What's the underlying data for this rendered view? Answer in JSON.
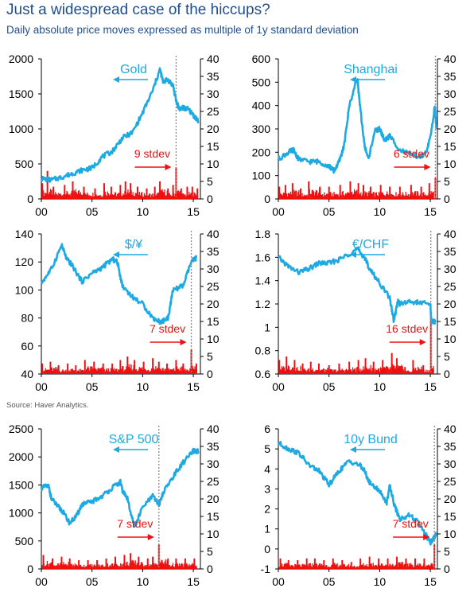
{
  "title": "Just a widespread case of the hiccups?",
  "subtitle": "Daily absolute price moves expressed as multiple of 1y standard deviation",
  "source": "Source: Haver Analytics.",
  "colors": {
    "price": "#1da9e1",
    "stdev": "#ee1111",
    "title": "#1f4e8c",
    "marker": "#888888"
  },
  "chart_data": [
    {
      "type": "line",
      "label": "Gold",
      "stdev_label": "9 stdev",
      "x_ticks": [
        "00",
        "05",
        "10",
        "15"
      ],
      "xlim": [
        2000,
        2015.7
      ],
      "x_tick_values": [
        2000,
        2005,
        2010,
        2015
      ],
      "left_ticks": [
        "0",
        "500",
        "1000",
        "1500",
        "2000"
      ],
      "left_ylim": [
        0,
        2000
      ],
      "right_ticks": [
        "0",
        "5",
        "10",
        "15",
        "20",
        "25",
        "30",
        "35",
        "40"
      ],
      "right_ylim": [
        0,
        40
      ],
      "event_year": 2013.3,
      "series": [
        {
          "name": "Gold",
          "axis": "left",
          "x": [
            2000,
            2001,
            2002,
            2003,
            2004,
            2005,
            2006,
            2007,
            2008,
            2009,
            2010,
            2011,
            2011.7,
            2012,
            2012.5,
            2013,
            2013.3,
            2013.6,
            2014,
            2014.5,
            2015,
            2015.5
          ],
          "values": [
            290,
            270,
            310,
            360,
            410,
            440,
            600,
            680,
            870,
            950,
            1230,
            1550,
            1850,
            1680,
            1700,
            1620,
            1400,
            1290,
            1300,
            1280,
            1200,
            1110
          ]
        },
        {
          "name": "stdev moves",
          "axis": "right",
          "x": [
            2000.1,
            2000.6,
            2001.2,
            2002.3,
            2003.1,
            2004.2,
            2005.3,
            2006.2,
            2006.9,
            2007.8,
            2008.3,
            2008.8,
            2009.5,
            2010.4,
            2011.2,
            2011.7,
            2012.5,
            2013.0,
            2013.3,
            2013.8,
            2014.4,
            2014.9,
            2015.4
          ],
          "values": [
            4.5,
            8,
            3.5,
            4,
            5,
            3.5,
            3,
            4.5,
            3.5,
            4,
            5,
            4.5,
            3.5,
            3,
            3.5,
            5,
            3,
            4,
            9,
            3,
            3.5,
            3.5,
            3
          ]
        }
      ]
    },
    {
      "type": "line",
      "label": "Shanghai",
      "stdev_label": "6 stdev",
      "x_ticks": [
        "00",
        "05",
        "10",
        "15"
      ],
      "xlim": [
        2000,
        2015.7
      ],
      "x_tick_values": [
        2000,
        2005,
        2010,
        2015
      ],
      "left_ticks": [
        "0",
        "100",
        "200",
        "300",
        "400",
        "500",
        "600"
      ],
      "left_ylim": [
        0,
        600
      ],
      "right_ticks": [
        "0",
        "5",
        "10",
        "15",
        "20",
        "25",
        "30",
        "35",
        "40"
      ],
      "right_ylim": [
        0,
        40
      ],
      "event_year": 2015.5,
      "series": [
        {
          "name": "Shanghai",
          "axis": "left",
          "x": [
            2000,
            2001,
            2001.5,
            2002,
            2003,
            2004,
            2005,
            2005.5,
            2006,
            2006.5,
            2007,
            2007.8,
            2008,
            2008.5,
            2008.9,
            2009.5,
            2010,
            2010.5,
            2011,
            2012,
            2013,
            2014,
            2014.5,
            2015,
            2015.45,
            2015.6
          ],
          "values": [
            170,
            200,
            210,
            170,
            160,
            160,
            140,
            120,
            160,
            230,
            400,
            520,
            420,
            230,
            170,
            290,
            300,
            250,
            270,
            210,
            190,
            180,
            190,
            260,
            400,
            300
          ]
        },
        {
          "name": "stdev moves",
          "axis": "right",
          "x": [
            2000.1,
            2000.7,
            2001.4,
            2002.2,
            2003.0,
            2004.1,
            2005.0,
            2006.1,
            2007.1,
            2007.9,
            2008.4,
            2009.1,
            2010.1,
            2011.0,
            2012.0,
            2013.1,
            2014.1,
            2014.9,
            2015.5
          ],
          "values": [
            3.5,
            4,
            4.5,
            3,
            5,
            3.5,
            3.5,
            4,
            5,
            4.5,
            4,
            3.5,
            4,
            3.5,
            3.5,
            4,
            3.5,
            4.5,
            6
          ]
        }
      ]
    },
    {
      "type": "line",
      "label": "$/¥",
      "stdev_label": "7 stdev",
      "x_ticks": [
        "00",
        "05",
        "10",
        "15"
      ],
      "xlim": [
        2000,
        2015.7
      ],
      "x_tick_values": [
        2000,
        2005,
        2010,
        2015
      ],
      "left_ticks": [
        "40",
        "60",
        "80",
        "100",
        "120",
        "140"
      ],
      "left_ylim": [
        40,
        140
      ],
      "right_ticks": [
        "0",
        "5",
        "10",
        "15",
        "20",
        "25",
        "30",
        "35",
        "40"
      ],
      "right_ylim": [
        0,
        40
      ],
      "event_year": 2014.8,
      "series": [
        {
          "name": "$/¥",
          "axis": "left",
          "x": [
            2000,
            2001,
            2002,
            2002.5,
            2003,
            2004,
            2005,
            2006,
            2007,
            2007.5,
            2008,
            2009,
            2010,
            2011,
            2011.8,
            2012.5,
            2013,
            2014,
            2014.8,
            2015.3
          ],
          "values": [
            105,
            115,
            132,
            122,
            118,
            106,
            112,
            116,
            122,
            120,
            103,
            95,
            90,
            80,
            77,
            80,
            100,
            103,
            120,
            123
          ]
        },
        {
          "name": "stdev moves",
          "axis": "right",
          "x": [
            2000.1,
            2000.9,
            2001.7,
            2002.6,
            2003.4,
            2004.3,
            2005.2,
            2006.1,
            2007.0,
            2007.8,
            2008.5,
            2009.2,
            2010.1,
            2011.0,
            2011.6,
            2012.4,
            2013.3,
            2014.0,
            2014.8,
            2015.3
          ],
          "values": [
            3,
            3.5,
            2.5,
            3,
            2.5,
            4,
            3.5,
            3,
            3,
            4,
            5,
            4,
            3.5,
            4.5,
            3.5,
            3,
            4,
            3,
            7,
            3
          ]
        }
      ]
    },
    {
      "type": "line",
      "label": "€/CHF",
      "stdev_label": "16 stdev",
      "x_ticks": [
        "00",
        "05",
        "10",
        "15"
      ],
      "xlim": [
        2000,
        2015.7
      ],
      "x_tick_values": [
        2000,
        2005,
        2010,
        2015
      ],
      "left_ticks": [
        "0.6",
        "0.8",
        "1",
        "1.2",
        "1.4",
        "1.6",
        "1.8"
      ],
      "left_ylim": [
        0.6,
        1.8
      ],
      "right_ticks": [
        "0",
        "5",
        "10",
        "15",
        "20",
        "25",
        "30",
        "35",
        "40"
      ],
      "right_ylim": [
        0,
        40
      ],
      "event_year": 2015.05,
      "series": [
        {
          "name": "€/CHF",
          "axis": "left",
          "x": [
            2000,
            2001,
            2002,
            2003,
            2004,
            2005,
            2006,
            2007,
            2007.8,
            2008.5,
            2009,
            2010,
            2011,
            2011.4,
            2011.8,
            2012,
            2013,
            2014,
            2015,
            2015.1,
            2015.5
          ],
          "values": [
            1.6,
            1.52,
            1.47,
            1.5,
            1.55,
            1.55,
            1.58,
            1.63,
            1.67,
            1.6,
            1.5,
            1.38,
            1.25,
            1.05,
            1.23,
            1.2,
            1.22,
            1.21,
            1.2,
            1.05,
            1.05
          ]
        },
        {
          "name": "stdev moves",
          "axis": "right",
          "x": [
            2000.1,
            2000.8,
            2001.6,
            2002.4,
            2003.2,
            2004.0,
            2005.0,
            2006.0,
            2007.0,
            2007.9,
            2008.6,
            2009.4,
            2010.3,
            2011.2,
            2011.7,
            2012.5,
            2013.3,
            2014.3,
            2015.05
          ],
          "values": [
            4,
            5,
            4,
            3,
            3.5,
            3,
            2.5,
            3,
            3.5,
            4,
            4.5,
            3.5,
            4,
            6,
            4.5,
            2,
            4,
            2.5,
            16
          ]
        }
      ]
    },
    {
      "type": "line",
      "label": "S&P 500",
      "stdev_label": "7 stdev",
      "x_ticks": [
        "00",
        "05",
        "10",
        "15"
      ],
      "xlim": [
        2000,
        2015.7
      ],
      "x_tick_values": [
        2000,
        2005,
        2010,
        2015
      ],
      "left_ticks": [
        "0",
        "500",
        "1000",
        "1500",
        "2000",
        "2500"
      ],
      "left_ylim": [
        0,
        2500
      ],
      "right_ticks": [
        "0",
        "5",
        "10",
        "15",
        "20",
        "25",
        "30",
        "35",
        "40"
      ],
      "right_ylim": [
        0,
        40
      ],
      "event_year": 2011.6,
      "series": [
        {
          "name": "S&P 500",
          "axis": "left",
          "x": [
            2000,
            2000.7,
            2001,
            2001.7,
            2002,
            2002.8,
            2003.5,
            2004,
            2005,
            2006,
            2007,
            2007.8,
            2008,
            2008.5,
            2009.2,
            2010,
            2011,
            2011.6,
            2012,
            2013,
            2014,
            2015,
            2015.5
          ],
          "values": [
            1450,
            1480,
            1250,
            1100,
            1050,
            820,
            950,
            1150,
            1200,
            1300,
            1450,
            1550,
            1400,
            1250,
            750,
            1100,
            1300,
            1150,
            1350,
            1650,
            1900,
            2100,
            2100
          ]
        },
        {
          "name": "stdev moves",
          "axis": "right",
          "x": [
            2000.2,
            2001.1,
            2002.0,
            2002.8,
            2003.7,
            2004.6,
            2005.5,
            2006.4,
            2007.3,
            2008.2,
            2008.8,
            2009.6,
            2010.5,
            2011.0,
            2011.6,
            2012.5,
            2013.3,
            2014.2,
            2015.1
          ],
          "values": [
            4,
            3,
            3.5,
            3,
            2.5,
            2.5,
            2.5,
            3,
            3.5,
            4,
            4.5,
            3.5,
            3,
            3.5,
            7,
            3,
            3,
            3,
            3
          ]
        }
      ]
    },
    {
      "type": "line",
      "label": "10y Bund",
      "stdev_label": "7 stdev",
      "x_ticks": [
        "00",
        "05",
        "10",
        "15"
      ],
      "xlim": [
        2000,
        2015.7
      ],
      "x_tick_values": [
        2000,
        2005,
        2010,
        2015
      ],
      "left_ticks": [
        "-1",
        "0",
        "1",
        "2",
        "3",
        "4",
        "5",
        "6"
      ],
      "left_ylim": [
        -1,
        6
      ],
      "right_ticks": [
        "0",
        "5",
        "10",
        "15",
        "20",
        "25",
        "30",
        "35",
        "40"
      ],
      "right_ylim": [
        0,
        40
      ],
      "event_year": 2015.4,
      "series": [
        {
          "name": "10y Bund",
          "axis": "left",
          "x": [
            2000,
            2001,
            2002,
            2003,
            2004,
            2005,
            2006,
            2007,
            2008,
            2008.5,
            2009,
            2010,
            2010.7,
            2011,
            2011.5,
            2012,
            2013,
            2014,
            2015,
            2015.3,
            2015.6
          ],
          "values": [
            5.3,
            5.0,
            4.8,
            4.2,
            3.9,
            3.2,
            3.9,
            4.4,
            4.2,
            3.9,
            3.3,
            2.9,
            2.3,
            3.2,
            2.1,
            1.5,
            1.7,
            1.2,
            0.3,
            0.5,
            0.8
          ]
        },
        {
          "name": "stdev moves",
          "axis": "right",
          "x": [
            2000.2,
            2001.0,
            2001.9,
            2002.8,
            2003.6,
            2004.5,
            2005.4,
            2006.3,
            2007.2,
            2008.1,
            2009.0,
            2009.9,
            2010.8,
            2011.7,
            2012.6,
            2013.5,
            2014.4,
            2015.4
          ],
          "values": [
            3,
            2.5,
            2.5,
            3,
            3,
            2.5,
            3,
            2.5,
            2,
            3,
            3.5,
            3,
            3,
            3.5,
            3,
            3,
            3,
            7
          ]
        }
      ]
    }
  ]
}
